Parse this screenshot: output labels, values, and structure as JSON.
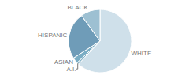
{
  "chart_data": {
    "type": "pie",
    "categories": [
      "WHITE",
      "A.I.",
      "ASIAN",
      "HISPANIC",
      "BLACK"
    ],
    "values": [
      62,
      1,
      3,
      24,
      10
    ],
    "colors": [
      "#cfe0ea",
      "#89b4c8",
      "#7aadc4",
      "#6f9cb8",
      "#9dc0d2"
    ]
  }
}
